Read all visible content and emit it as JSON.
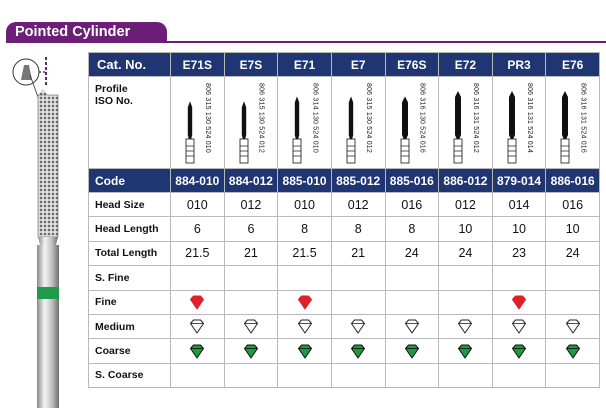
{
  "section_title": "Pointed Cylinder",
  "table": {
    "header_label": "Cat. No.",
    "profile_label_line1": "Profile",
    "profile_label_line2": "ISO No.",
    "code_label": "Code",
    "row_labels": {
      "head_size": "Head Size",
      "head_length": "Head Length",
      "total_length": "Total Length",
      "s_fine": "S. Fine",
      "fine": "Fine",
      "medium": "Medium",
      "coarse": "Coarse",
      "s_coarse": "S. Coarse"
    },
    "columns": [
      {
        "cat": "E71S",
        "iso": "806 315 130 524 010",
        "code": "884-010",
        "head_size": "010",
        "head_length": "6",
        "total_length": "21.5",
        "fine": true,
        "medium": true,
        "coarse": true,
        "head_frac": 0.25,
        "tip": "fine"
      },
      {
        "cat": "E7S",
        "iso": "806 315 130 524 012",
        "code": "884-012",
        "head_size": "012",
        "head_length": "6",
        "total_length": "21",
        "fine": false,
        "medium": true,
        "coarse": true,
        "head_frac": 0.25,
        "tip": "fine"
      },
      {
        "cat": "E71",
        "iso": "806 314 130 524 010",
        "code": "885-010",
        "head_size": "010",
        "head_length": "8",
        "total_length": "21.5",
        "fine": true,
        "medium": true,
        "coarse": true,
        "head_frac": 0.33,
        "tip": "fine"
      },
      {
        "cat": "E7",
        "iso": "806 315 130 524 012",
        "code": "885-012",
        "head_size": "012",
        "head_length": "8",
        "total_length": "21",
        "fine": false,
        "medium": true,
        "coarse": true,
        "head_frac": 0.33,
        "tip": "fine"
      },
      {
        "cat": "E76S",
        "iso": "806 316 130 524 016",
        "code": "885-016",
        "head_size": "016",
        "head_length": "8",
        "total_length": "24",
        "fine": false,
        "medium": true,
        "coarse": true,
        "head_frac": 0.33,
        "tip": "wide"
      },
      {
        "cat": "E72",
        "iso": "806 316 131 524 012",
        "code": "886-012",
        "head_size": "012",
        "head_length": "10",
        "total_length": "24",
        "fine": false,
        "medium": true,
        "coarse": true,
        "head_frac": 0.42,
        "tip": "wide"
      },
      {
        "cat": "PR3",
        "iso": "806 316 131 524 014",
        "code": "879-014",
        "head_size": "014",
        "head_length": "10",
        "total_length": "23",
        "fine": true,
        "medium": true,
        "coarse": true,
        "head_frac": 0.42,
        "tip": "wide"
      },
      {
        "cat": "E76",
        "iso": "806 316 131 524 016",
        "code": "886-016",
        "head_size": "016",
        "head_length": "10",
        "total_length": "24",
        "fine": false,
        "medium": true,
        "coarse": true,
        "head_frac": 0.42,
        "tip": "wide"
      }
    ]
  },
  "colors": {
    "header_purple": "#6b1f77",
    "table_navy": "#1f3672",
    "fine_red": "#e0202a",
    "coarse_green": "#1f9a3e",
    "band_green": "#1f9a4a"
  },
  "icons": {
    "fine": "red-diamond-icon",
    "medium": "outline-diamond-icon",
    "coarse": "green-diamond-icon"
  }
}
